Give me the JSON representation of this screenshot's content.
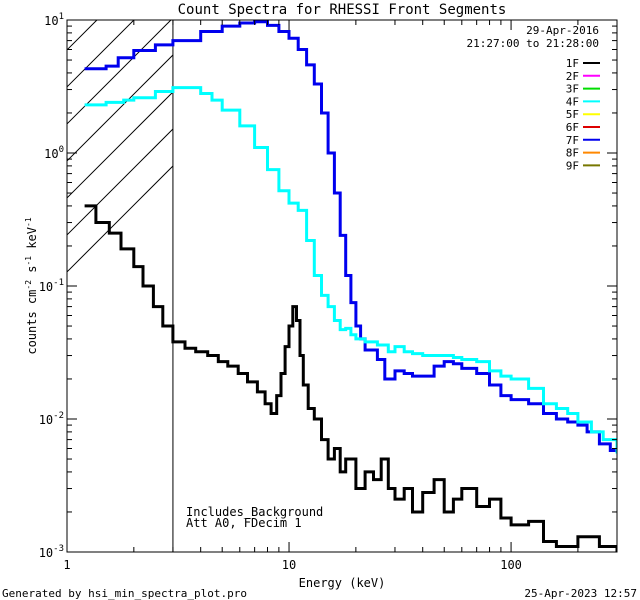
{
  "chart_data": {
    "type": "line",
    "title": "Count Spectra for RHESSI Front Segments",
    "xlabel": "Energy (keV)",
    "ylabel_parts": [
      "counts cm",
      "-2",
      " s",
      "-1",
      " keV",
      "-1"
    ],
    "xscale": "log",
    "yscale": "log",
    "xlim": [
      1,
      300
    ],
    "ylim": [
      0.001,
      10
    ],
    "x_ticks": [
      {
        "v": 1,
        "label": "1"
      },
      {
        "v": 10,
        "label": "10"
      },
      {
        "v": 100,
        "label": "100"
      }
    ],
    "y_ticks": [
      {
        "v": 10,
        "base": "10",
        "exp": "1"
      },
      {
        "v": 1,
        "base": "10",
        "exp": "0"
      },
      {
        "v": 0.1,
        "base": "10",
        "exp": "-1"
      },
      {
        "v": 0.01,
        "base": "10",
        "exp": "-2"
      },
      {
        "v": 0.001,
        "base": "10",
        "exp": "-3"
      }
    ],
    "date": "29-Apr-2016",
    "time_range": "21:27:00 to 21:28:00",
    "shaded_region_upper_energy": 3,
    "annotations": [
      "Includes_Background",
      "Att A0, FDecim 1"
    ],
    "legend_position": "top-right",
    "legend": [
      {
        "name": "1F",
        "color": "#000000"
      },
      {
        "name": "2F",
        "color": "#ff00ff"
      },
      {
        "name": "3F",
        "color": "#00dd00"
      },
      {
        "name": "4F",
        "color": "#00ffff"
      },
      {
        "name": "5F",
        "color": "#ffff00"
      },
      {
        "name": "6F",
        "color": "#dd0000"
      },
      {
        "name": "7F",
        "color": "#0000ee"
      },
      {
        "name": "8F",
        "color": "#ff8800"
      },
      {
        "name": "9F",
        "color": "#777700"
      }
    ],
    "series": [
      {
        "name": "7F",
        "color": "#0000ee",
        "stroke": 3,
        "points": [
          [
            1.2,
            4.3
          ],
          [
            1.5,
            4.5
          ],
          [
            1.7,
            5.2
          ],
          [
            2.0,
            5.9
          ],
          [
            2.5,
            6.5
          ],
          [
            3.0,
            7.0
          ],
          [
            4.0,
            8.2
          ],
          [
            5.0,
            9.0
          ],
          [
            6.0,
            9.5
          ],
          [
            7.0,
            9.7
          ],
          [
            8.0,
            9.1
          ],
          [
            9.0,
            8.2
          ],
          [
            10,
            7.3
          ],
          [
            11,
            6.0
          ],
          [
            12,
            4.6
          ],
          [
            13,
            3.3
          ],
          [
            14,
            2.0
          ],
          [
            15,
            1.0
          ],
          [
            16,
            0.5
          ],
          [
            17,
            0.24
          ],
          [
            18,
            0.12
          ],
          [
            19,
            0.075
          ],
          [
            20,
            0.05
          ],
          [
            21,
            0.04
          ],
          [
            22,
            0.033
          ],
          [
            25,
            0.028
          ],
          [
            27,
            0.02
          ],
          [
            30,
            0.023
          ],
          [
            33,
            0.022
          ],
          [
            36,
            0.021
          ],
          [
            40,
            0.021
          ],
          [
            45,
            0.025
          ],
          [
            50,
            0.027
          ],
          [
            55,
            0.026
          ],
          [
            60,
            0.024
          ],
          [
            70,
            0.022
          ],
          [
            80,
            0.018
          ],
          [
            90,
            0.015
          ],
          [
            100,
            0.014
          ],
          [
            110,
            0.014
          ],
          [
            120,
            0.013
          ],
          [
            140,
            0.011
          ],
          [
            160,
            0.01
          ],
          [
            180,
            0.0095
          ],
          [
            200,
            0.009
          ],
          [
            220,
            0.008
          ],
          [
            250,
            0.0065
          ],
          [
            280,
            0.0058
          ],
          [
            300,
            0.0055
          ]
        ]
      },
      {
        "name": "4F",
        "color": "#00ffff",
        "stroke": 3,
        "points": [
          [
            1.2,
            2.3
          ],
          [
            1.5,
            2.4
          ],
          [
            1.8,
            2.5
          ],
          [
            2.0,
            2.6
          ],
          [
            2.5,
            2.9
          ],
          [
            3.0,
            3.1
          ],
          [
            3.5,
            3.1
          ],
          [
            4.0,
            2.8
          ],
          [
            4.5,
            2.5
          ],
          [
            5.0,
            2.1
          ],
          [
            6.0,
            1.6
          ],
          [
            7.0,
            1.1
          ],
          [
            8.0,
            0.75
          ],
          [
            9.0,
            0.52
          ],
          [
            10,
            0.42
          ],
          [
            11,
            0.37
          ],
          [
            12,
            0.22
          ],
          [
            13,
            0.12
          ],
          [
            14,
            0.085
          ],
          [
            15,
            0.07
          ],
          [
            16,
            0.055
          ],
          [
            17,
            0.047
          ],
          [
            18,
            0.048
          ],
          [
            19,
            0.043
          ],
          [
            20,
            0.04
          ],
          [
            22,
            0.038
          ],
          [
            25,
            0.036
          ],
          [
            28,
            0.032
          ],
          [
            30,
            0.035
          ],
          [
            33,
            0.032
          ],
          [
            36,
            0.031
          ],
          [
            40,
            0.03
          ],
          [
            45,
            0.03
          ],
          [
            50,
            0.03
          ],
          [
            55,
            0.029
          ],
          [
            60,
            0.028
          ],
          [
            70,
            0.027
          ],
          [
            80,
            0.023
          ],
          [
            90,
            0.021
          ],
          [
            100,
            0.02
          ],
          [
            120,
            0.017
          ],
          [
            140,
            0.013
          ],
          [
            160,
            0.012
          ],
          [
            180,
            0.011
          ],
          [
            200,
            0.0095
          ],
          [
            230,
            0.008
          ],
          [
            260,
            0.007
          ],
          [
            300,
            0.0055
          ]
        ]
      },
      {
        "name": "1F",
        "color": "#000000",
        "stroke": 3,
        "points": [
          [
            1.2,
            0.4
          ],
          [
            1.35,
            0.3
          ],
          [
            1.55,
            0.25
          ],
          [
            1.75,
            0.19
          ],
          [
            2.0,
            0.14
          ],
          [
            2.2,
            0.1
          ],
          [
            2.45,
            0.07
          ],
          [
            2.7,
            0.05
          ],
          [
            3.0,
            0.038
          ],
          [
            3.4,
            0.034
          ],
          [
            3.8,
            0.032
          ],
          [
            4.3,
            0.03
          ],
          [
            4.8,
            0.027
          ],
          [
            5.3,
            0.025
          ],
          [
            5.9,
            0.022
          ],
          [
            6.5,
            0.019
          ],
          [
            7.2,
            0.016
          ],
          [
            7.8,
            0.013
          ],
          [
            8.3,
            0.011
          ],
          [
            8.8,
            0.015
          ],
          [
            9.2,
            0.022
          ],
          [
            9.6,
            0.035
          ],
          [
            10.0,
            0.05
          ],
          [
            10.4,
            0.07
          ],
          [
            10.8,
            0.055
          ],
          [
            11.2,
            0.03
          ],
          [
            11.6,
            0.018
          ],
          [
            12.2,
            0.012
          ],
          [
            13,
            0.01
          ],
          [
            14,
            0.007
          ],
          [
            15,
            0.005
          ],
          [
            16,
            0.006
          ],
          [
            17,
            0.004
          ],
          [
            18,
            0.005
          ],
          [
            20,
            0.003
          ],
          [
            22,
            0.004
          ],
          [
            24,
            0.0035
          ],
          [
            26,
            0.005
          ],
          [
            28,
            0.003
          ],
          [
            30,
            0.0025
          ],
          [
            33,
            0.003
          ],
          [
            36,
            0.002
          ],
          [
            40,
            0.0028
          ],
          [
            45,
            0.0035
          ],
          [
            50,
            0.002
          ],
          [
            55,
            0.0025
          ],
          [
            60,
            0.003
          ],
          [
            70,
            0.0022
          ],
          [
            80,
            0.0025
          ],
          [
            90,
            0.0018
          ],
          [
            100,
            0.0016
          ],
          [
            120,
            0.0017
          ],
          [
            140,
            0.0012
          ],
          [
            160,
            0.0011
          ],
          [
            200,
            0.0013
          ],
          [
            250,
            0.0011
          ],
          [
            300,
            0.001
          ]
        ]
      }
    ]
  },
  "footer": {
    "generated_by": "Generated by hsi_min_spectra_plot.pro",
    "timestamp": "25-Apr-2023 12:57"
  }
}
